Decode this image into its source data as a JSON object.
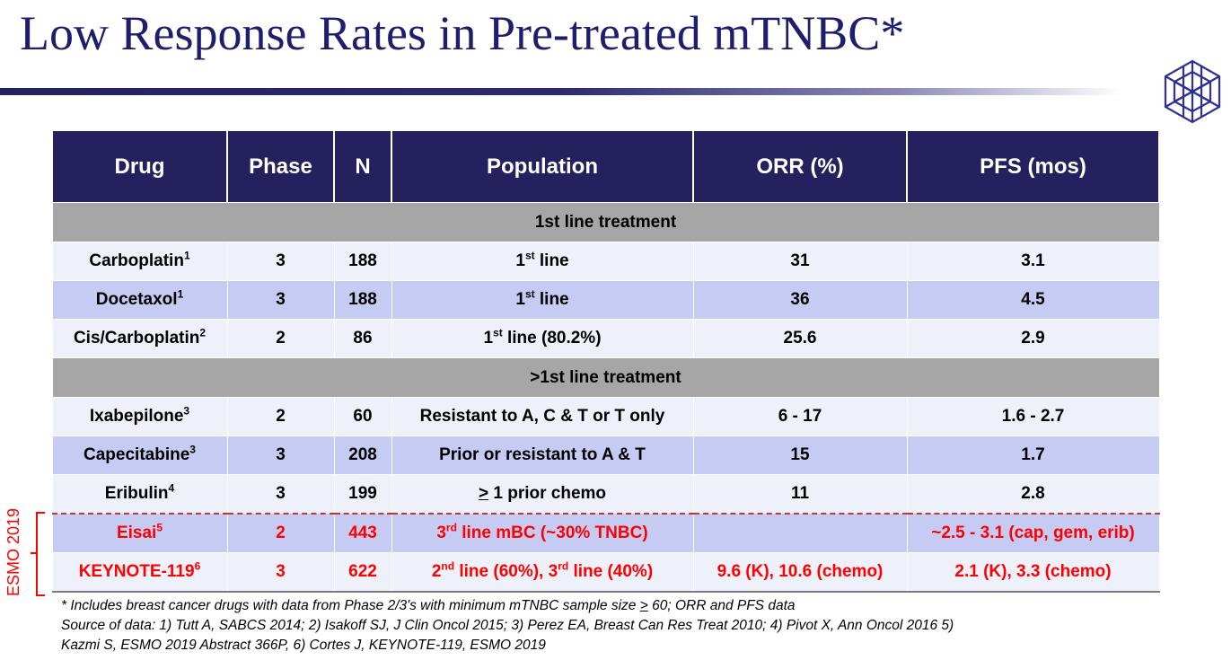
{
  "slide": {
    "title": "Low Response Rates in Pre-treated mTNBC*",
    "side_label": "ESMO 2019"
  },
  "table": {
    "headers": [
      "Drug",
      "Phase",
      "N",
      "Population",
      "ORR (%)",
      "PFS (mos)"
    ],
    "section1": "1st line treatment",
    "section2": ">1st line treatment",
    "rows": [
      {
        "drug": "Carboplatin",
        "sup": "1",
        "phase": "3",
        "n": "188",
        "pop_pre": "1",
        "pop_sup": "st",
        "pop_post": " line",
        "orr": "31",
        "pfs": "3.1"
      },
      {
        "drug": "Docetaxol",
        "sup": "1",
        "phase": "3",
        "n": "188",
        "pop_pre": "1",
        "pop_sup": "st",
        "pop_post": " line",
        "orr": "36",
        "pfs": "4.5"
      },
      {
        "drug": "Cis/Carboplatin",
        "sup": "2",
        "phase": "2",
        "n": "86",
        "pop_pre": "1",
        "pop_sup": "st",
        "pop_post": " line (80.2%)",
        "orr": "25.6",
        "pfs": "2.9"
      },
      {
        "drug": "Ixabepilone",
        "sup": "3",
        "phase": "2",
        "n": "60",
        "pop": "Resistant to A, C & T or T only",
        "orr": "6 - 17",
        "pfs": "1.6 - 2.7"
      },
      {
        "drug": "Capecitabine",
        "sup": "3",
        "phase": "3",
        "n": "208",
        "pop": "Prior or resistant to A & T",
        "orr": "15",
        "pfs": "1.7"
      },
      {
        "drug": "Eribulin",
        "sup": "4",
        "phase": "3",
        "n": "199",
        "pop_ge": ">",
        "pop_rest": " 1 prior chemo",
        "orr": "11",
        "pfs": "2.8"
      },
      {
        "drug": "Eisai",
        "sup": "5",
        "phase": "2",
        "n": "443",
        "pop_pre": "3",
        "pop_sup": "rd",
        "pop_post": " line mBC (~30% TNBC)",
        "orr": "",
        "pfs": "~2.5 - 3.1 (cap, gem, erib)"
      },
      {
        "drug": "KEYNOTE-119",
        "sup": "6",
        "phase": "3",
        "n": "622",
        "pop_pre": "2",
        "pop_sup": "nd",
        "pop_mid": " line (60%), 3",
        "pop_sup2": "rd",
        "pop_post": " line (40%)",
        "orr": "9.6 (K), 10.6 (chemo)",
        "pfs": "2.1 (K), 3.3 (chemo)"
      }
    ]
  },
  "footnote": {
    "line1_pre": "* Includes breast cancer drugs with data from Phase 2/3's with minimum mTNBC sample size ",
    "line1_ge": ">",
    "line1_post": " 60;  ORR and PFS data",
    "line2": "Source of data: 1) Tutt A, SABCS 2014; 2) Isakoff SJ, J Clin Oncol 2015; 3) Perez EA, Breast Can Res Treat 2010; 4) Pivot X, Ann Oncol 2016 5)",
    "line3": "Kazmi S, ESMO 2019 Abstract 366P, 6) Cortes J, KEYNOTE-119, ESMO 2019"
  },
  "colors": {
    "header_bg": "#24215e",
    "section_bg": "#a6a6a6",
    "row_light": "#eef0fa",
    "row_blue": "#c5cbf2",
    "highlight_red": "#ff0000",
    "title_color": "#1f1d6e"
  },
  "icons": {
    "logo": "hexagon-network-logo-icon"
  }
}
